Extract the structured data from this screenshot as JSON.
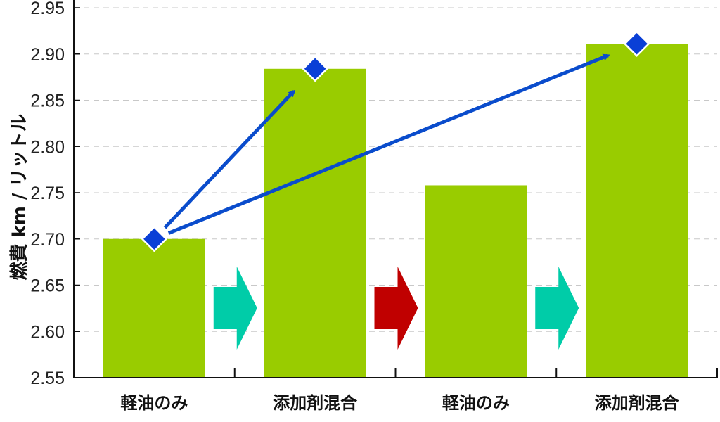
{
  "chart_data": {
    "type": "bar",
    "title": "",
    "xlabel": "",
    "ylabel": "燃費 km / リットル",
    "ylim": [
      2.55,
      2.95
    ],
    "yticks": [
      "2.55",
      "2.60",
      "2.65",
      "2.70",
      "2.75",
      "2.80",
      "2.85",
      "2.90",
      "2.95"
    ],
    "grid": true,
    "categories": [
      "軽油のみ",
      "添加剤混合",
      "軽油のみ",
      "添加剤混合"
    ],
    "values": [
      2.7,
      2.884,
      2.758,
      2.911
    ],
    "colors": {
      "bar": "#99cc00",
      "marker": "#0a3fd6",
      "arrow_line": "#0a4ccc",
      "chevron_teal": "#00cca8",
      "chevron_red": "#c00000"
    },
    "markers": [
      {
        "category": 0,
        "value": 2.7
      },
      {
        "category": 1,
        "value": 2.884
      },
      {
        "category": 3,
        "value": 2.911
      }
    ],
    "arrows": [
      {
        "from": 0,
        "to": 1
      },
      {
        "from": 0,
        "to": 3
      }
    ],
    "chevrons": [
      {
        "between": [
          0,
          1
        ],
        "color": "teal"
      },
      {
        "between": [
          1,
          2
        ],
        "color": "red"
      },
      {
        "between": [
          2,
          3
        ],
        "color": "teal"
      }
    ]
  }
}
